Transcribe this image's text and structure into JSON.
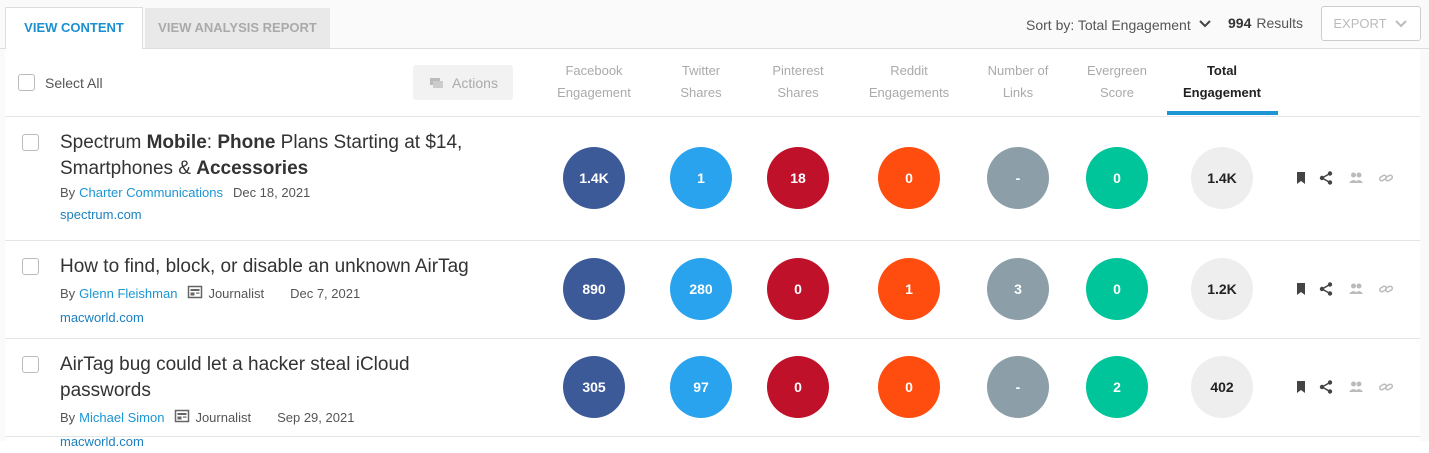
{
  "tabs": [
    {
      "label": "VIEW CONTENT",
      "active": true
    },
    {
      "label": "VIEW ANALYSIS REPORT",
      "active": false
    }
  ],
  "sort": {
    "label": "Sort by: Total Engagement"
  },
  "results": {
    "count": 994,
    "label": "Results"
  },
  "export": {
    "label": "EXPORT"
  },
  "select_all": {
    "label": "Select All"
  },
  "actions": {
    "label": "Actions"
  },
  "columns": [
    {
      "label": [
        "Facebook",
        "Engagement"
      ],
      "color": "#3d5a98",
      "text_color": "#ffffff",
      "active": false
    },
    {
      "label": [
        "Twitter",
        "Shares"
      ],
      "color": "#2aa3ef",
      "text_color": "#ffffff",
      "active": false
    },
    {
      "label": [
        "Pinterest",
        "Shares"
      ],
      "color": "#bf1129",
      "text_color": "#ffffff",
      "active": false
    },
    {
      "label": [
        "Reddit",
        "Engagements"
      ],
      "color": "#ff4c0f",
      "text_color": "#ffffff",
      "active": false
    },
    {
      "label": [
        "Number of",
        "Links"
      ],
      "color": "#8c9ea7",
      "text_color": "#ffffff",
      "active": false
    },
    {
      "label": [
        "Evergreen",
        "Score"
      ],
      "color": "#00c49a",
      "text_color": "#ffffff",
      "active": false
    },
    {
      "label": [
        "Total",
        "Engagement"
      ],
      "color": "#eeeeee",
      "text_color": "#222222",
      "active": true
    }
  ],
  "articles": [
    {
      "title": [
        {
          "text": "Spectrum ",
          "bold": false
        },
        {
          "text": "Mobile",
          "bold": true
        },
        {
          "text": ": ",
          "bold": false
        },
        {
          "text": "Phone",
          "bold": true
        },
        {
          "text": " Plans Starting at $14, Smartphones & ",
          "bold": false
        },
        {
          "text": "Accessories",
          "bold": true
        }
      ],
      "by": "By",
      "author": "Charter Communications",
      "date": "Dec 18, 2021",
      "domain": "spectrum.com",
      "metrics": [
        "1.4K",
        "1",
        "18",
        "0",
        "-",
        "0",
        "1.4K"
      ]
    },
    {
      "title": [
        {
          "text": "How to find, block, or disable an unknown AirTag",
          "bold": false
        }
      ],
      "by": "By",
      "author": "Glenn Fleishman",
      "author_type": "Journalist",
      "date": "Dec 7, 2021",
      "domain": "macworld.com",
      "metrics": [
        "890",
        "280",
        "0",
        "1",
        "3",
        "0",
        "1.2K"
      ]
    },
    {
      "title": [
        {
          "text": "AirTag bug could let a hacker steal iCloud passwords",
          "bold": false
        }
      ],
      "by": "By",
      "author": "Michael Simon",
      "author_type": "Journalist",
      "date": "Sep 29, 2021",
      "domain": "macworld.com",
      "metrics": [
        "305",
        "97",
        "0",
        "0",
        "-",
        "2",
        "402"
      ]
    }
  ]
}
